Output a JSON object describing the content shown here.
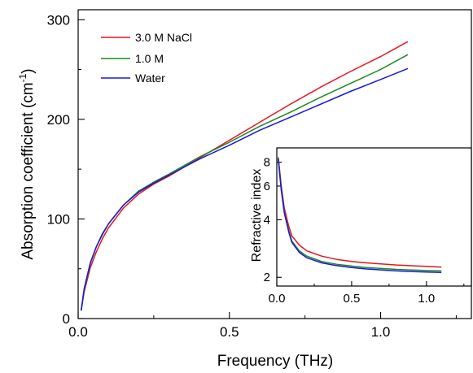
{
  "chart_data": [
    {
      "type": "line",
      "xlabel": "Frequency (THz)",
      "ylabel_main": "Absorption coefficient (cm",
      "ylabel_sup": "-1",
      "ylabel_close": ")",
      "xlim": [
        0,
        1.3
      ],
      "ylim": [
        0,
        310
      ],
      "xticks": [
        0,
        0.5,
        1.0
      ],
      "xtick_labels": [
        "0.0",
        "0.5",
        "1.0"
      ],
      "yticks": [
        0,
        100,
        200,
        300
      ],
      "ytick_labels": [
        "0",
        "100",
        "200",
        "300"
      ],
      "legend_position": "top-left",
      "series": [
        {
          "name": "3.0 M NaCl",
          "color": "#e8141e",
          "x": [
            0.01,
            0.02,
            0.04,
            0.06,
            0.08,
            0.1,
            0.15,
            0.2,
            0.25,
            0.3,
            0.4,
            0.5,
            0.6,
            0.7,
            0.8,
            0.9,
            1.0,
            1.09
          ],
          "y": [
            8,
            27,
            51,
            67,
            80,
            91,
            111,
            125,
            135,
            143,
            161,
            179,
            197,
            215,
            232,
            248,
            263,
            278
          ]
        },
        {
          "name": "1.0 M",
          "color": "#1a8a1a",
          "x": [
            0.01,
            0.02,
            0.04,
            0.06,
            0.08,
            0.1,
            0.15,
            0.2,
            0.25,
            0.3,
            0.4,
            0.5,
            0.6,
            0.7,
            0.8,
            0.9,
            1.0,
            1.09
          ],
          "y": [
            8,
            29,
            55,
            72,
            84,
            95,
            114,
            128,
            137,
            145,
            162,
            177,
            193,
            207,
            222,
            236,
            250,
            265
          ]
        },
        {
          "name": "Water",
          "color": "#1818e0",
          "x": [
            0.01,
            0.02,
            0.04,
            0.06,
            0.08,
            0.1,
            0.15,
            0.2,
            0.25,
            0.3,
            0.4,
            0.5,
            0.6,
            0.7,
            0.8,
            0.9,
            1.0,
            1.09
          ],
          "y": [
            8,
            30,
            56,
            72,
            85,
            95,
            114,
            127,
            136,
            144,
            160,
            174,
            189,
            202,
            215,
            228,
            240,
            251
          ]
        }
      ]
    },
    {
      "type": "line",
      "ylabel": "Refractive index",
      "xlim": [
        0,
        1.3
      ],
      "ylim": [
        1.8,
        9.5
      ],
      "yscale": "log",
      "xticks": [
        0,
        0.5,
        1.0
      ],
      "xtick_labels": [
        "0.0",
        "0.5",
        "1.0"
      ],
      "yticks": [
        2,
        4,
        6,
        8
      ],
      "ytick_labels": [
        "2",
        "4",
        "6",
        "8"
      ],
      "series": [
        {
          "name": "3.0 M NaCl",
          "color": "#e8141e",
          "x": [
            0.01,
            0.03,
            0.05,
            0.08,
            0.1,
            0.15,
            0.2,
            0.3,
            0.4,
            0.5,
            0.6,
            0.8,
            1.0,
            1.1
          ],
          "y": [
            8.5,
            6.0,
            4.6,
            3.7,
            3.3,
            2.95,
            2.75,
            2.58,
            2.48,
            2.42,
            2.38,
            2.32,
            2.28,
            2.26
          ]
        },
        {
          "name": "1.0 M",
          "color": "#1a8a1a",
          "x": [
            0.01,
            0.03,
            0.05,
            0.08,
            0.1,
            0.15,
            0.2,
            0.3,
            0.4,
            0.5,
            0.6,
            0.8,
            1.0,
            1.1
          ],
          "y": [
            8.4,
            5.8,
            4.4,
            3.5,
            3.1,
            2.75,
            2.58,
            2.42,
            2.34,
            2.29,
            2.25,
            2.2,
            2.17,
            2.16
          ]
        },
        {
          "name": "Water",
          "color": "#1818e0",
          "x": [
            0.01,
            0.03,
            0.05,
            0.08,
            0.1,
            0.15,
            0.2,
            0.3,
            0.4,
            0.5,
            0.6,
            0.8,
            1.0,
            1.1
          ],
          "y": [
            8.3,
            5.7,
            4.35,
            3.45,
            3.05,
            2.7,
            2.53,
            2.38,
            2.3,
            2.25,
            2.21,
            2.16,
            2.13,
            2.12
          ]
        }
      ]
    }
  ]
}
